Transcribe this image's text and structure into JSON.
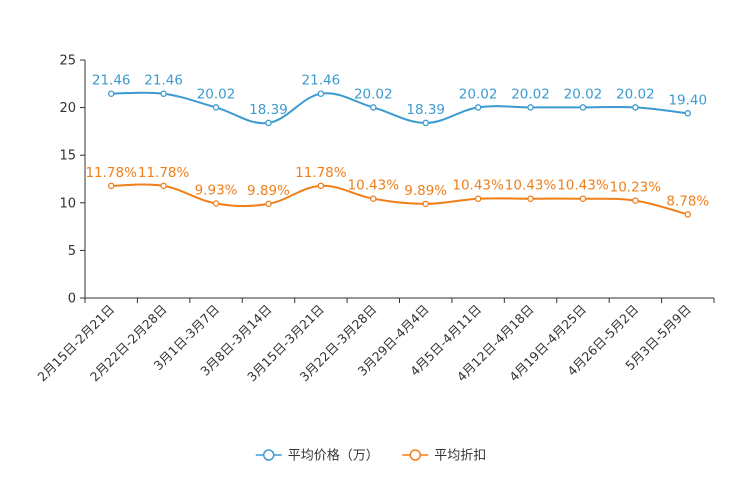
{
  "chart_data": {
    "type": "line",
    "title": "",
    "xlabel": "",
    "ylabel": "",
    "ylim": [
      0,
      25
    ],
    "yticks": [
      0,
      5,
      10,
      15,
      20,
      25
    ],
    "categories": [
      "2月15日-2月21日",
      "2月22日-2月28日",
      "3月1日-3月7日",
      "3月8日-3月14日",
      "3月15日-3月21日",
      "3月22日-3月28日",
      "3月29日-4月4日",
      "4月5日-4月11日",
      "4月12日-4月18日",
      "4月19日-4月25日",
      "4月26日-5月2日",
      "5月3日-5月9日"
    ],
    "series": [
      {
        "name": "平均价格（万）",
        "color": "#3d9bd1",
        "values": [
          21.46,
          21.46,
          20.02,
          18.39,
          21.46,
          20.02,
          18.39,
          20.02,
          20.02,
          20.02,
          20.02,
          19.4
        ],
        "labels": [
          "21.46",
          "21.46",
          "20.02",
          "18.39",
          "21.46",
          "20.02",
          "18.39",
          "20.02",
          "20.02",
          "20.02",
          "20.02",
          "19.40"
        ]
      },
      {
        "name": "平均折扣",
        "color": "#f07f1a",
        "values": [
          11.78,
          11.78,
          9.93,
          9.89,
          11.78,
          10.43,
          9.89,
          10.43,
          10.43,
          10.43,
          10.23,
          8.78
        ],
        "labels": [
          "11.78%",
          "11.78%",
          "9.93%",
          "9.89%",
          "11.78%",
          "10.43%",
          "9.89%",
          "10.43%",
          "10.43%",
          "10.43%",
          "10.23%",
          "8.78%"
        ]
      }
    ],
    "legend_position": "bottom-center",
    "grid": false
  }
}
